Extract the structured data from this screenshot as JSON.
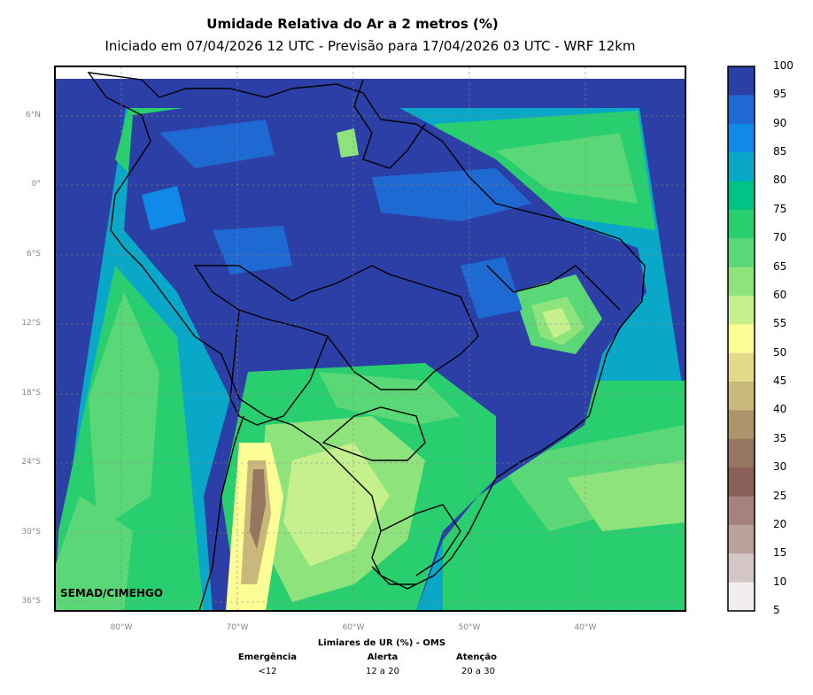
{
  "header": {
    "title": "Umidade Relativa do Ar a 2 metros (%)",
    "subtitle": "Iniciado em 07/04/2026 12 UTC - Previsão para 17/04/2026 03 UTC - WRF 12km"
  },
  "map": {
    "lat_ticks": [
      "6°N",
      "0°",
      "6°S",
      "12°S",
      "18°S",
      "24°S",
      "30°S",
      "36°S"
    ],
    "lon_ticks": [
      "80°W",
      "70°W",
      "60°W",
      "50°W",
      "40°W"
    ],
    "credit": "SEMAD/CIMEHGO"
  },
  "colorbar": {
    "labels": [
      "100",
      "95",
      "90",
      "85",
      "80",
      "75",
      "70",
      "65",
      "60",
      "55",
      "50",
      "45",
      "40",
      "35",
      "30",
      "25",
      "20",
      "15",
      "10",
      "5"
    ],
    "colors": [
      "#2b3fa6",
      "#1e69d2",
      "#0f8ae8",
      "#0aa8c8",
      "#02c285",
      "#29cf6e",
      "#5ad877",
      "#8ee37c",
      "#c6f08d",
      "#fdfd96",
      "#e2da88",
      "#c9b87a",
      "#ad946c",
      "#95765e",
      "#8a6058",
      "#a6827c",
      "#bba29c",
      "#d4c6c4",
      "#f2eeee"
    ]
  },
  "legend": {
    "heading": "Limiares de UR (%) - OMS",
    "items": [
      {
        "label": "Emergência",
        "value": "<12"
      },
      {
        "label": "Alerta",
        "value": "12 a 20"
      },
      {
        "label": "Atenção",
        "value": "20 a 30"
      }
    ]
  }
}
